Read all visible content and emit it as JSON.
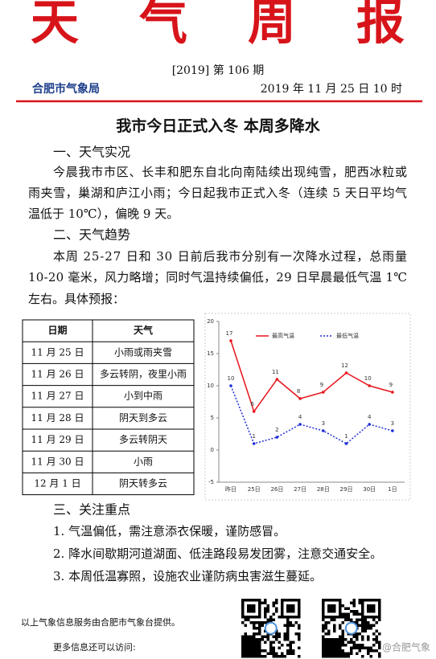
{
  "header": {
    "title": "天气周报",
    "issue": "[2019] 第 106 期",
    "agency": "合肥市气象局",
    "time": "2019 年 11 月 25 日 10 时"
  },
  "headline": "我市今日正式入冬 本周多降水",
  "sections": [
    {
      "heading": "一、天气实况",
      "lines": [
        "今晨我市市区、长丰和肥东自北向南陆续出现纯雪，肥西冰粒或",
        "雨夹雪，巢湖和庐江小雨；今日起我市正式入冬（连续 5 天日平均气",
        "温低于 10℃），偏晚 9 天。"
      ]
    },
    {
      "heading": "二、天气趋势",
      "lines": [
        "本周 25-27 日和 30 日前后我市分别有一次降水过程，总雨量",
        "10-20 毫米，风力略增；同时气温持续偏低，29 日早晨最低气温 1℃",
        "左右。具体预报："
      ]
    },
    {
      "heading": "三、关注重点",
      "lines": [
        "1. 气温偏低，需注意添衣保暖，谨防感冒。",
        "2. 降水间歇期河道湖面、低洼路段易发团雾，注意交通安全。",
        "3. 本周低温寡照，设施农业谨防病虫害滋生蔓延。"
      ]
    }
  ],
  "table": {
    "columns": [
      "日期",
      "天气"
    ],
    "rows": [
      [
        "11 月 25 日",
        "小雨或雨夹雪"
      ],
      [
        "11 月 26 日",
        "多云转阴，夜里小雨"
      ],
      [
        "11 月 27 日",
        "小到中雨"
      ],
      [
        "11 月 28 日",
        "阴天到多云"
      ],
      [
        "11 月 29 日",
        "多云转阴天"
      ],
      [
        "11 月 30 日",
        "小雨"
      ],
      [
        "12 月 1 日",
        "阴天转多云"
      ]
    ]
  },
  "chart_data": {
    "type": "line",
    "categories": [
      "昨日",
      "25日",
      "26日",
      "27日",
      "28日",
      "29日",
      "30日",
      "1日"
    ],
    "series": [
      {
        "name": "最高气温",
        "color": "#e8141c",
        "values": [
          17,
          6,
          11,
          8,
          9,
          12,
          10,
          9
        ]
      },
      {
        "name": "最低气温",
        "color": "#1f2ed8",
        "values": [
          10,
          1,
          2,
          4,
          3,
          1,
          4,
          3
        ]
      }
    ],
    "ylim": [
      -5,
      20
    ],
    "yticks": [
      -5,
      0,
      5,
      10,
      15,
      20
    ]
  },
  "footer": {
    "provider": "以上气象信息服务由合肥市气象台提供。",
    "more": "更多信息还可以访问:",
    "watermark": "@合肥气象"
  }
}
